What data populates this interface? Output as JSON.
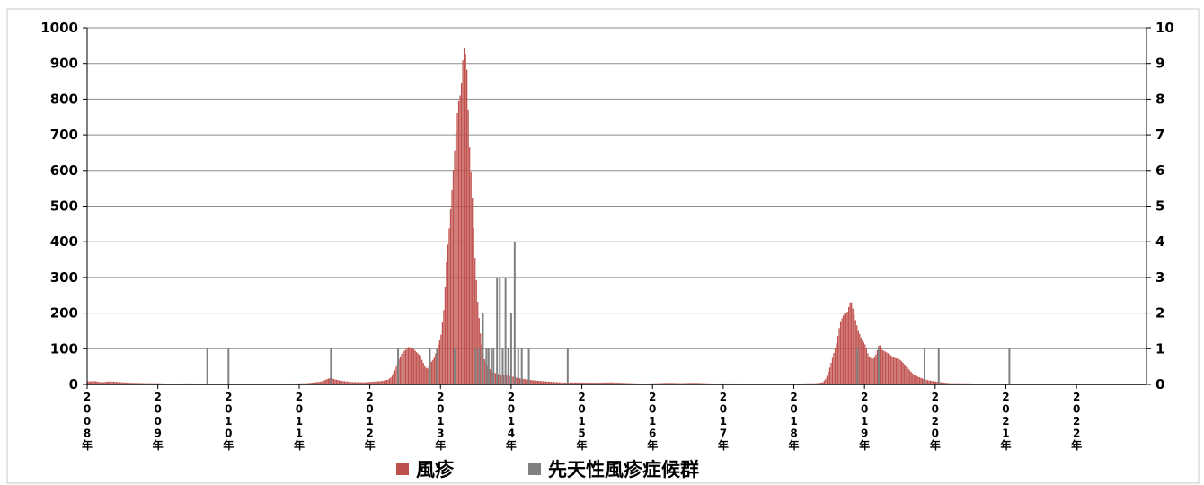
{
  "chart_data": {
    "type": "bar",
    "title": "",
    "x_unit": "week",
    "x_range": [
      "2008-01",
      "2022-12"
    ],
    "xticks": [
      "2008年",
      "2009年",
      "2010年",
      "2011年",
      "2012年",
      "2013年",
      "2014年",
      "2015年",
      "2016年",
      "2017年",
      "2018年",
      "2019年",
      "2020年",
      "2021年",
      "2022年"
    ],
    "y_left": {
      "ylim": [
        0,
        1000
      ],
      "ticks": [
        "0",
        "100",
        "200",
        "300",
        "400",
        "500",
        "600",
        "700",
        "800",
        "900",
        "1000"
      ]
    },
    "y_right": {
      "ylim": [
        0,
        10
      ],
      "ticks": [
        "0",
        "1",
        "2",
        "3",
        "4",
        "5",
        "6",
        "7",
        "8",
        "9",
        "10"
      ]
    },
    "grid": true,
    "legend_position": "bottom",
    "series": [
      {
        "name": "風疹",
        "axis": "left",
        "color": "#c0504d",
        "points": [
          [
            2008.0,
            8
          ],
          [
            2008.1,
            10
          ],
          [
            2008.2,
            7
          ],
          [
            2008.3,
            9
          ],
          [
            2008.45,
            6
          ],
          [
            2008.6,
            4
          ],
          [
            2008.8,
            3
          ],
          [
            2009.0,
            3
          ],
          [
            2009.2,
            2
          ],
          [
            2009.4,
            3
          ],
          [
            2009.6,
            2
          ],
          [
            2009.8,
            2
          ],
          [
            2010.0,
            1
          ],
          [
            2010.3,
            2
          ],
          [
            2010.6,
            2
          ],
          [
            2010.9,
            2
          ],
          [
            2011.1,
            3
          ],
          [
            2011.2,
            5
          ],
          [
            2011.3,
            8
          ],
          [
            2011.35,
            12
          ],
          [
            2011.4,
            18
          ],
          [
            2011.45,
            22
          ],
          [
            2011.5,
            16
          ],
          [
            2011.6,
            10
          ],
          [
            2011.75,
            6
          ],
          [
            2011.9,
            5
          ],
          [
            2012.0,
            6
          ],
          [
            2012.15,
            8
          ],
          [
            2012.25,
            12
          ],
          [
            2012.3,
            20
          ],
          [
            2012.35,
            40
          ],
          [
            2012.4,
            70
          ],
          [
            2012.45,
            95
          ],
          [
            2012.5,
            110
          ],
          [
            2012.55,
            128
          ],
          [
            2012.6,
            118
          ],
          [
            2012.65,
            100
          ],
          [
            2012.7,
            85
          ],
          [
            2012.75,
            60
          ],
          [
            2012.8,
            40
          ],
          [
            2012.85,
            55
          ],
          [
            2012.9,
            65
          ],
          [
            2012.95,
            90
          ],
          [
            2013.0,
            120
          ],
          [
            2013.04,
            180
          ],
          [
            2013.08,
            300
          ],
          [
            2013.12,
            380
          ],
          [
            2013.16,
            480
          ],
          [
            2013.2,
            580
          ],
          [
            2013.24,
            680
          ],
          [
            2013.28,
            720
          ],
          [
            2013.32,
            850
          ],
          [
            2013.36,
            840
          ],
          [
            2013.4,
            640
          ],
          [
            2013.44,
            520
          ],
          [
            2013.48,
            360
          ],
          [
            2013.52,
            240
          ],
          [
            2013.56,
            150
          ],
          [
            2013.6,
            90
          ],
          [
            2013.66,
            60
          ],
          [
            2013.72,
            40
          ],
          [
            2013.8,
            30
          ],
          [
            2013.9,
            25
          ],
          [
            2014.0,
            20
          ],
          [
            2014.1,
            15
          ],
          [
            2014.2,
            12
          ],
          [
            2014.3,
            10
          ],
          [
            2014.45,
            8
          ],
          [
            2014.6,
            7
          ],
          [
            2014.8,
            6
          ],
          [
            2015.0,
            5
          ],
          [
            2015.2,
            4
          ],
          [
            2015.4,
            5
          ],
          [
            2015.6,
            4
          ],
          [
            2015.8,
            3
          ],
          [
            2016.0,
            3
          ],
          [
            2016.2,
            4
          ],
          [
            2016.4,
            3
          ],
          [
            2016.6,
            4
          ],
          [
            2016.8,
            3
          ],
          [
            2017.0,
            3
          ],
          [
            2017.3,
            2
          ],
          [
            2017.6,
            2
          ],
          [
            2017.9,
            2
          ],
          [
            2018.1,
            3
          ],
          [
            2018.3,
            3
          ],
          [
            2018.4,
            5
          ],
          [
            2018.45,
            15
          ],
          [
            2018.5,
            40
          ],
          [
            2018.55,
            70
          ],
          [
            2018.6,
            100
          ],
          [
            2018.65,
            150
          ],
          [
            2018.7,
            170
          ],
          [
            2018.75,
            180
          ],
          [
            2018.8,
            215
          ],
          [
            2018.85,
            180
          ],
          [
            2018.9,
            150
          ],
          [
            2018.95,
            130
          ],
          [
            2019.0,
            120
          ],
          [
            2019.05,
            90
          ],
          [
            2019.1,
            85
          ],
          [
            2019.15,
            95
          ],
          [
            2019.2,
            125
          ],
          [
            2019.25,
            100
          ],
          [
            2019.3,
            90
          ],
          [
            2019.35,
            80
          ],
          [
            2019.4,
            70
          ],
          [
            2019.45,
            65
          ],
          [
            2019.5,
            60
          ],
          [
            2019.55,
            50
          ],
          [
            2019.6,
            40
          ],
          [
            2019.65,
            30
          ],
          [
            2019.7,
            22
          ],
          [
            2019.8,
            15
          ],
          [
            2019.9,
            10
          ],
          [
            2020.0,
            8
          ],
          [
            2020.1,
            6
          ],
          [
            2020.2,
            4
          ],
          [
            2020.4,
            3
          ],
          [
            2020.6,
            2
          ],
          [
            2020.8,
            1
          ],
          [
            2021.0,
            1
          ],
          [
            2021.3,
            1
          ],
          [
            2021.6,
            1
          ],
          [
            2021.9,
            1
          ],
          [
            2022.2,
            1
          ],
          [
            2022.5,
            1
          ],
          [
            2022.8,
            1
          ]
        ]
      },
      {
        "name": "先天性風疹症候群",
        "axis": "right",
        "color": "#808080",
        "points": [
          [
            2009.7,
            1
          ],
          [
            2010.0,
            1
          ],
          [
            2011.45,
            1
          ],
          [
            2012.4,
            1
          ],
          [
            2012.85,
            1
          ],
          [
            2012.95,
            1
          ],
          [
            2013.2,
            1
          ],
          [
            2013.5,
            1
          ],
          [
            2013.55,
            1
          ],
          [
            2013.6,
            2
          ],
          [
            2013.65,
            1
          ],
          [
            2013.68,
            1
          ],
          [
            2013.72,
            1
          ],
          [
            2013.75,
            1
          ],
          [
            2013.8,
            3
          ],
          [
            2013.84,
            3
          ],
          [
            2013.88,
            1
          ],
          [
            2013.92,
            3
          ],
          [
            2013.96,
            1
          ],
          [
            2014.0,
            2
          ],
          [
            2014.05,
            4
          ],
          [
            2014.1,
            1
          ],
          [
            2014.15,
            1
          ],
          [
            2014.25,
            1
          ],
          [
            2014.8,
            1
          ],
          [
            2018.9,
            1
          ],
          [
            2019.2,
            1
          ],
          [
            2019.85,
            1
          ],
          [
            2020.05,
            1
          ],
          [
            2021.05,
            1
          ]
        ]
      }
    ]
  }
}
